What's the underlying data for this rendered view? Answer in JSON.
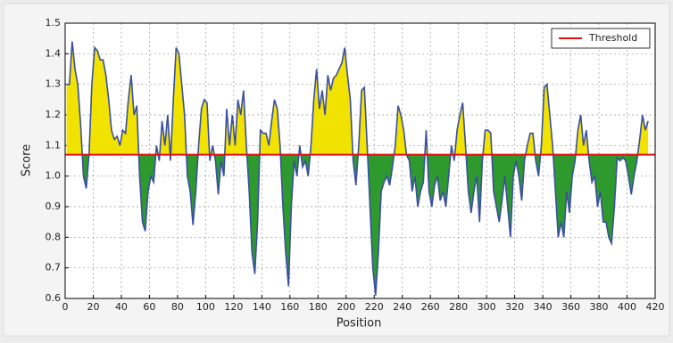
{
  "chart_data": {
    "type": "line",
    "x_label": "Position",
    "y_label": "Score",
    "xlim": [
      0,
      420
    ],
    "ylim": [
      0.6,
      1.5
    ],
    "xticks": [
      0,
      20,
      40,
      60,
      80,
      100,
      120,
      140,
      160,
      180,
      200,
      220,
      240,
      260,
      280,
      300,
      320,
      340,
      360,
      380,
      400,
      420
    ],
    "yticks": [
      0.6,
      0.7,
      0.8,
      0.9,
      {
        "value": 1,
        "label": "1.0"
      },
      1.1,
      1.2,
      1.3,
      1.4,
      1.5
    ],
    "grid": true,
    "legend_position": "upper right",
    "threshold": {
      "name": "Threshold",
      "value": 1.07,
      "color": "#e01010"
    },
    "above_color": "#f2e200",
    "below_color": "#2e9a2e",
    "x": [
      1,
      3,
      5,
      7,
      9,
      11,
      13,
      15,
      17,
      19,
      21,
      23,
      25,
      27,
      29,
      31,
      33,
      35,
      37,
      39,
      41,
      43,
      45,
      47,
      49,
      51,
      53,
      55,
      57,
      59,
      61,
      63,
      65,
      67,
      69,
      71,
      73,
      75,
      77,
      79,
      81,
      83,
      85,
      87,
      89,
      91,
      93,
      95,
      97,
      99,
      101,
      103,
      105,
      107,
      109,
      111,
      113,
      115,
      117,
      119,
      121,
      123,
      125,
      127,
      129,
      131,
      133,
      135,
      137,
      139,
      141,
      143,
      145,
      147,
      149,
      151,
      153,
      155,
      157,
      159,
      161,
      163,
      165,
      167,
      169,
      171,
      173,
      175,
      177,
      179,
      181,
      183,
      185,
      187,
      189,
      191,
      193,
      195,
      197,
      199,
      201,
      203,
      205,
      207,
      209,
      211,
      213,
      215,
      217,
      219,
      221,
      223,
      225,
      227,
      229,
      231,
      233,
      235,
      237,
      239,
      241,
      243,
      245,
      247,
      249,
      251,
      253,
      255,
      257,
      259,
      261,
      263,
      265,
      267,
      269,
      271,
      273,
      275,
      277,
      279,
      281,
      283,
      285,
      287,
      289,
      291,
      293,
      295,
      297,
      299,
      301,
      303,
      305,
      307,
      309,
      311,
      313,
      315,
      317,
      319,
      321,
      323,
      325,
      327,
      329,
      331,
      333,
      335,
      337,
      339,
      341,
      343,
      345,
      347,
      349,
      351,
      353,
      355,
      357,
      359,
      361,
      363,
      365,
      367,
      369,
      371,
      373,
      375,
      377,
      379,
      381,
      383,
      385,
      387,
      389,
      391,
      393,
      395,
      397,
      399,
      401,
      403,
      405,
      407,
      409,
      411,
      413,
      415
    ],
    "series": [
      {
        "name": "Score",
        "color": "#3a4fa0",
        "values": [
          1.3,
          1.3,
          1.44,
          1.35,
          1.3,
          1.17,
          1.0,
          0.96,
          1.07,
          1.3,
          1.42,
          1.41,
          1.38,
          1.38,
          1.33,
          1.25,
          1.15,
          1.12,
          1.13,
          1.1,
          1.15,
          1.14,
          1.25,
          1.33,
          1.2,
          1.23,
          1.0,
          0.85,
          0.82,
          0.95,
          1.0,
          0.98,
          1.1,
          1.05,
          1.18,
          1.1,
          1.2,
          1.05,
          1.25,
          1.42,
          1.4,
          1.3,
          1.2,
          1.0,
          0.95,
          0.84,
          0.95,
          1.1,
          1.22,
          1.25,
          1.24,
          1.05,
          1.1,
          1.05,
          0.94,
          1.05,
          1.0,
          1.22,
          1.1,
          1.2,
          1.1,
          1.25,
          1.2,
          1.28,
          1.1,
          0.95,
          0.75,
          0.68,
          0.85,
          1.15,
          1.14,
          1.14,
          1.1,
          1.18,
          1.25,
          1.22,
          1.1,
          0.9,
          0.75,
          0.64,
          0.9,
          1.05,
          1.0,
          1.1,
          1.03,
          1.05,
          1.0,
          1.1,
          1.25,
          1.35,
          1.22,
          1.28,
          1.2,
          1.33,
          1.28,
          1.32,
          1.33,
          1.35,
          1.37,
          1.42,
          1.33,
          1.25,
          1.05,
          0.97,
          1.1,
          1.28,
          1.29,
          1.1,
          0.9,
          0.7,
          0.61,
          0.75,
          0.95,
          0.98,
          1.0,
          0.97,
          1.03,
          1.1,
          1.23,
          1.2,
          1.15,
          1.07,
          1.05,
          0.95,
          1.0,
          0.9,
          0.95,
          0.98,
          1.15,
          0.95,
          0.9,
          0.97,
          1.0,
          0.92,
          0.95,
          0.9,
          1.0,
          1.1,
          1.05,
          1.15,
          1.2,
          1.24,
          1.1,
          0.95,
          0.88,
          0.95,
          1.0,
          0.85,
          1.05,
          1.15,
          1.15,
          1.14,
          0.95,
          0.9,
          0.85,
          0.92,
          1.0,
          0.9,
          0.8,
          1.0,
          1.05,
          1.0,
          0.92,
          1.05,
          1.1,
          1.14,
          1.14,
          1.05,
          1.0,
          1.1,
          1.29,
          1.3,
          1.2,
          1.1,
          0.95,
          0.8,
          0.85,
          0.8,
          0.95,
          0.88,
          1.0,
          1.05,
          1.15,
          1.2,
          1.1,
          1.15,
          1.05,
          0.98,
          1.0,
          0.9,
          0.95,
          0.85,
          0.85,
          0.8,
          0.78,
          0.9,
          1.06,
          1.05,
          1.06,
          1.05,
          1.0,
          0.94,
          1.0,
          1.05,
          1.12,
          1.2,
          1.15,
          1.18
        ]
      }
    ]
  }
}
